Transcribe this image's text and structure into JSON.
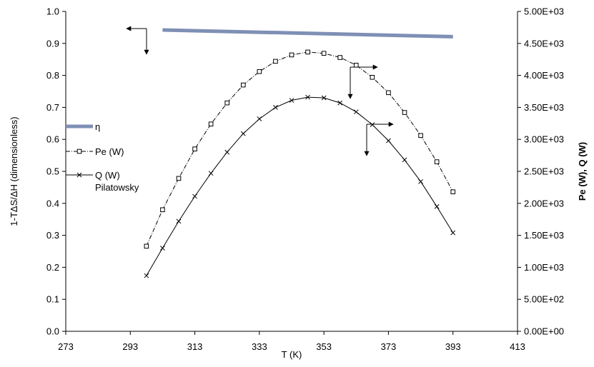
{
  "chart_data": {
    "type": "line",
    "title": "",
    "xlabel": "T (K)",
    "ylabel": "1-TΔS/ΔH (dimensionless)",
    "y2label": "Pe (W), Q (W)",
    "xlim": [
      273,
      413
    ],
    "ylim": [
      0,
      1.0
    ],
    "y2lim": [
      0,
      5000
    ],
    "xticks": [
      "273",
      "293",
      "313",
      "333",
      "353",
      "373",
      "393",
      "413"
    ],
    "yticks": [
      "0.0",
      "0.1",
      "0.2",
      "0.3",
      "0.4",
      "0.5",
      "0.6",
      "0.7",
      "0.8",
      "0.9",
      "1.0"
    ],
    "y2ticks": [
      "0.00E+00",
      "5.00E+02",
      "1.00E+03",
      "1.50E+03",
      "2.00E+03",
      "2.50E+03",
      "3.00E+03",
      "3.50E+03",
      "4.00E+03",
      "4.50E+03",
      "5.00E+03"
    ],
    "grid": false,
    "legend_position": "left",
    "series": [
      {
        "name": "η",
        "axis": "left",
        "style": "thick-line",
        "color": "#7f8fb5",
        "x": [
          303,
          393
        ],
        "y": [
          0.942,
          0.921
        ]
      },
      {
        "name": "Pe (W)",
        "axis": "right",
        "style": "dash-dot-square",
        "color": "#000000",
        "x": [
          298,
          303,
          308,
          313,
          318,
          323,
          328,
          333,
          338,
          343,
          348,
          353,
          358,
          363,
          368,
          373,
          378,
          383,
          388,
          393
        ],
        "y": [
          1330,
          1900,
          2390,
          2850,
          3240,
          3570,
          3850,
          4060,
          4220,
          4320,
          4365,
          4345,
          4280,
          4160,
          3970,
          3730,
          3420,
          3060,
          2650,
          2180
        ]
      },
      {
        "name": "Q (W)",
        "axis": "right",
        "style": "solid-x",
        "color": "#000000",
        "x": [
          298,
          303,
          308,
          313,
          318,
          323,
          328,
          333,
          338,
          343,
          348,
          353,
          358,
          363,
          368,
          373,
          378,
          383,
          388,
          393
        ],
        "y": [
          870,
          1300,
          1720,
          2110,
          2470,
          2800,
          3090,
          3320,
          3500,
          3610,
          3660,
          3650,
          3570,
          3430,
          3230,
          2980,
          2680,
          2340,
          1950,
          1540
        ]
      }
    ],
    "annotations": [
      {
        "text": "Pilatowsky"
      }
    ]
  }
}
